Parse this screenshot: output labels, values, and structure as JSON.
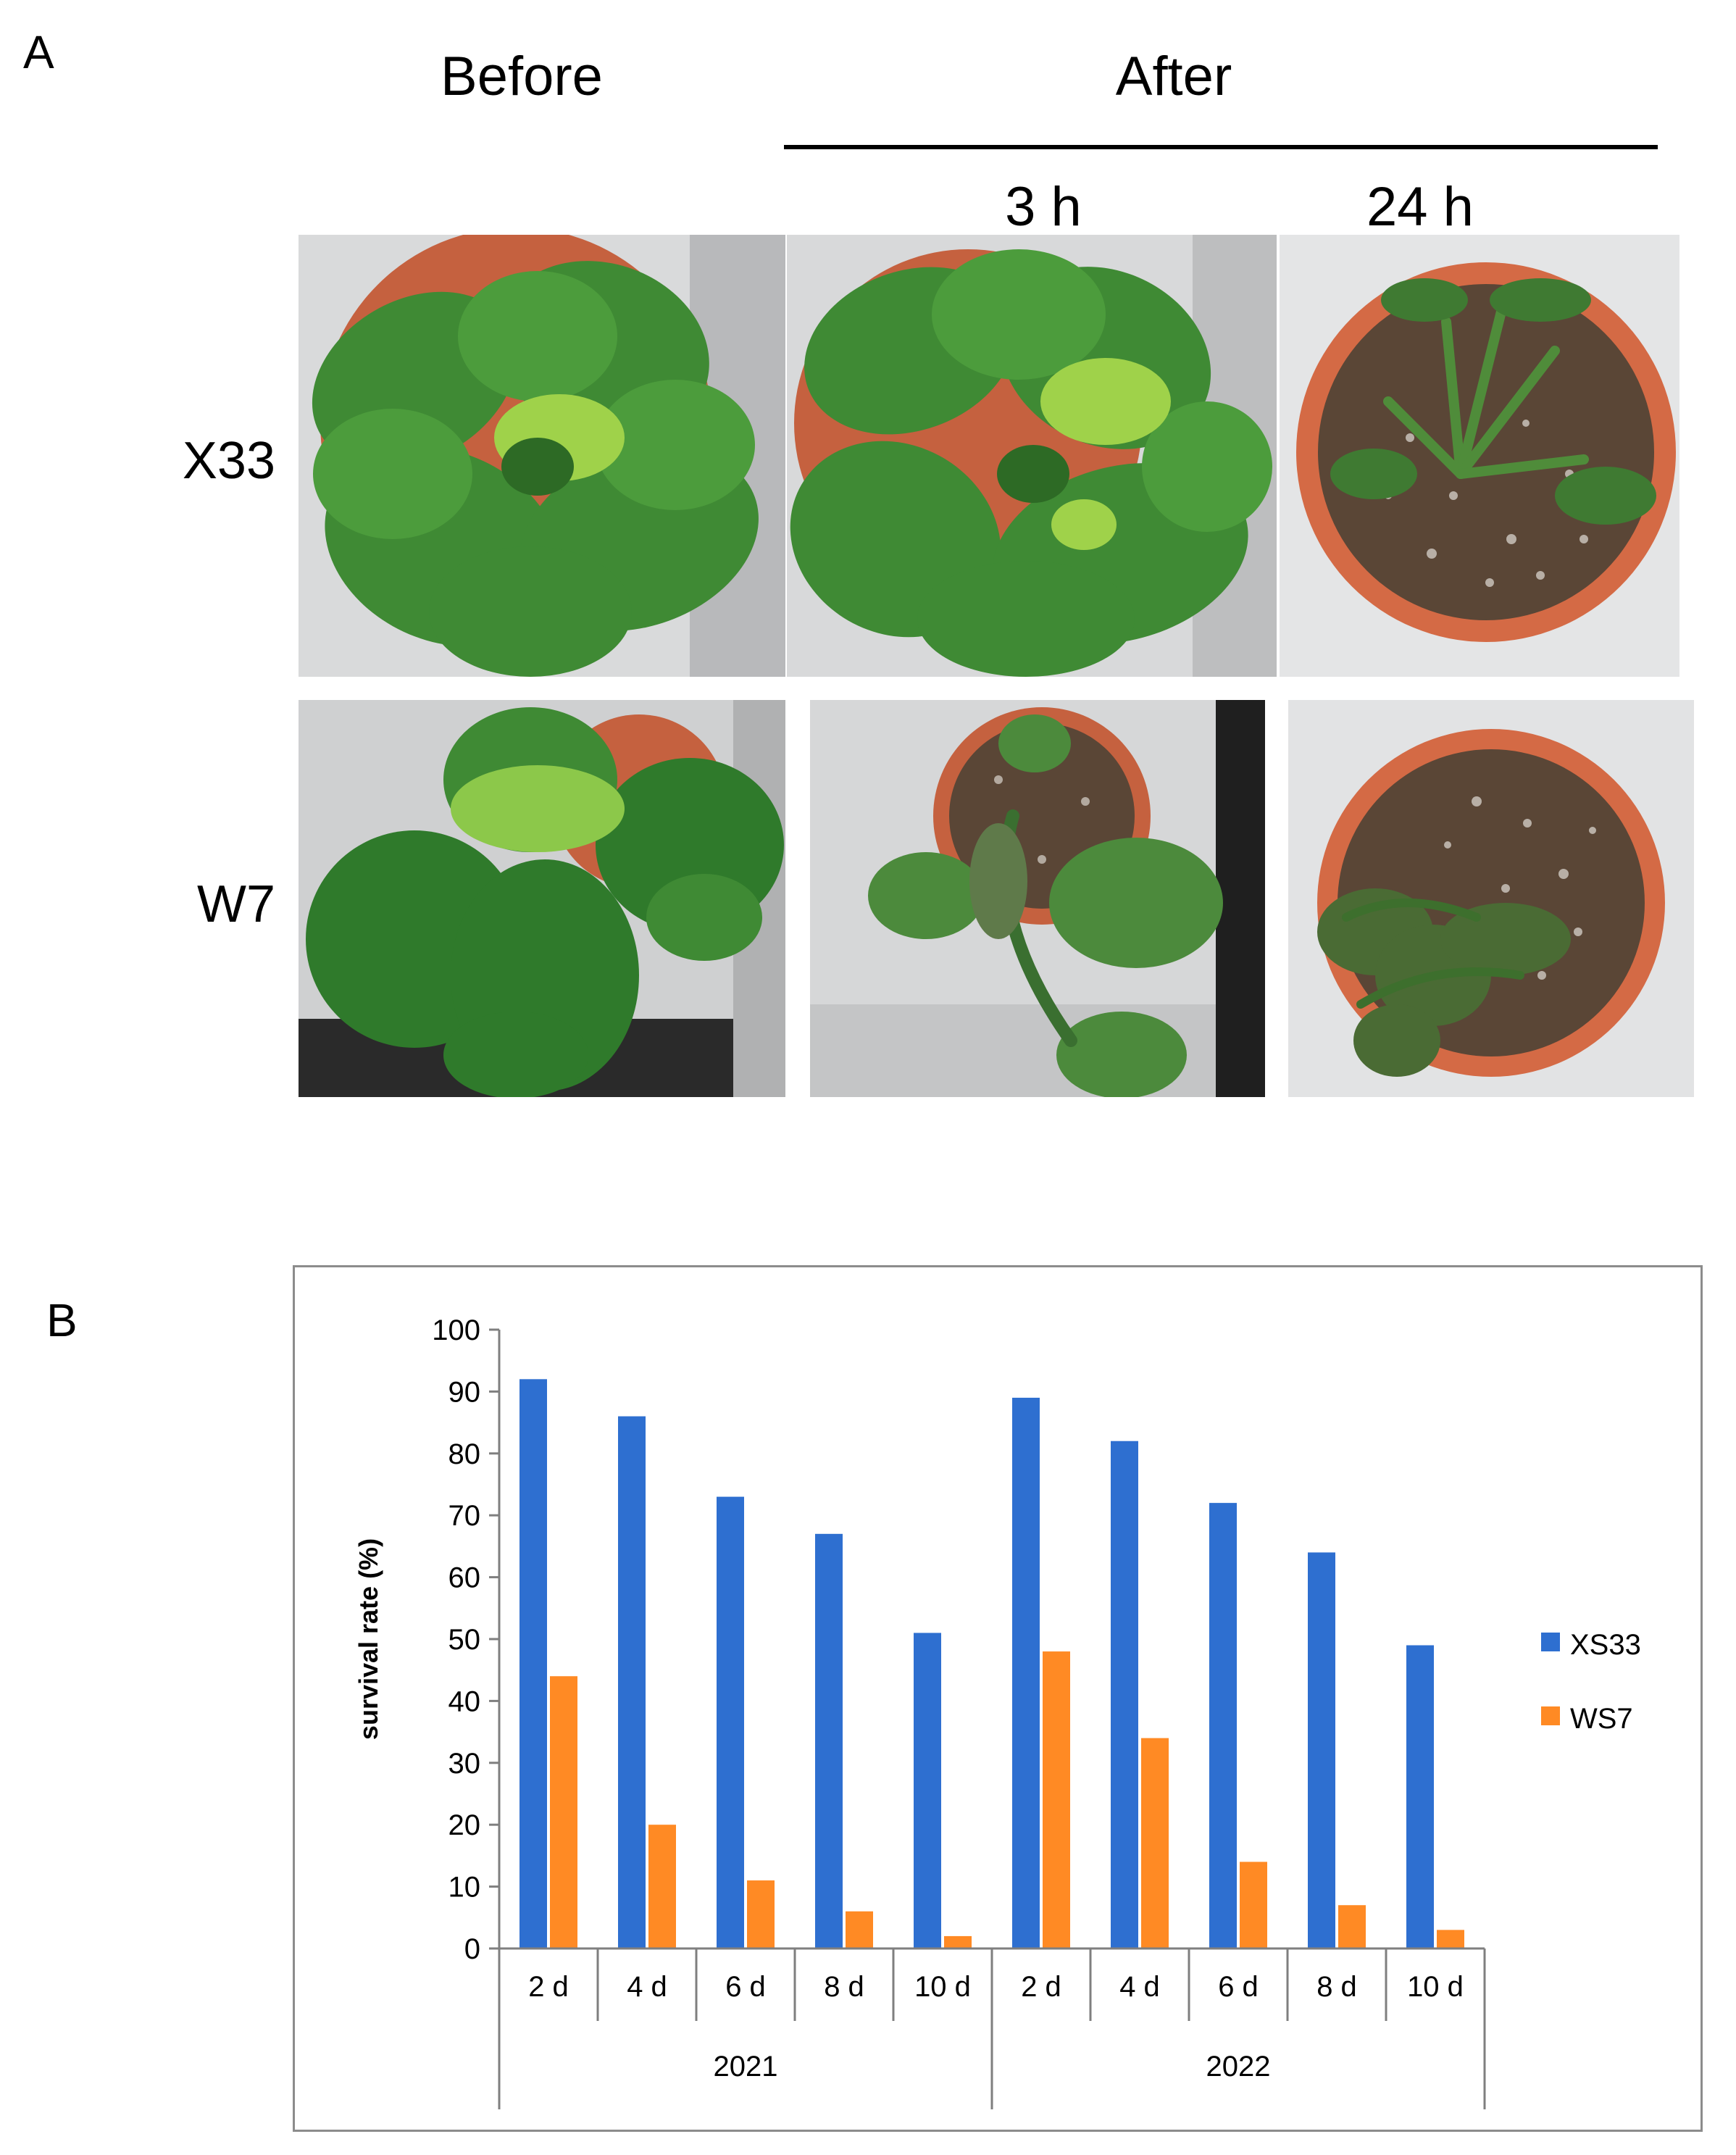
{
  "panel_a": {
    "letter": "A",
    "before_label": "Before",
    "after_label": "After",
    "after_times": [
      "3 h",
      "24 h"
    ],
    "rows": [
      "X33",
      "W7"
    ],
    "photos": [
      {
        "row": "X33",
        "stage": "before",
        "plant_state": "healthy"
      },
      {
        "row": "X33",
        "stage": "3 h",
        "plant_state": "healthy"
      },
      {
        "row": "X33",
        "stage": "24 h",
        "plant_state": "wilted"
      },
      {
        "row": "W7",
        "stage": "before",
        "plant_state": "healthy"
      },
      {
        "row": "W7",
        "stage": "3 h",
        "plant_state": "wilting"
      },
      {
        "row": "W7",
        "stage": "24 h",
        "plant_state": "wilted"
      }
    ]
  },
  "panel_b": {
    "letter": "B"
  },
  "chart_data": {
    "type": "bar",
    "categories": [
      "2 d",
      "4 d",
      "6 d",
      "8 d",
      "10 d",
      "2 d",
      "4 d",
      "6 d",
      "8 d",
      "10 d"
    ],
    "groups": [
      {
        "label": "2021",
        "span": [
          0,
          4
        ]
      },
      {
        "label": "2022",
        "span": [
          5,
          9
        ]
      }
    ],
    "series": [
      {
        "name": "XS33",
        "color": "#2e6fd0",
        "values": [
          92,
          86,
          73,
          67,
          51,
          89,
          82,
          72,
          64,
          49
        ]
      },
      {
        "name": "WS7",
        "color": "#ff8a24",
        "values": [
          44,
          20,
          11,
          6,
          2,
          48,
          34,
          14,
          7,
          3
        ]
      }
    ],
    "title": "",
    "xlabel": "",
    "ylabel": "survival rate (%)",
    "ylim": [
      0,
      100
    ],
    "yticks": [
      0,
      10,
      20,
      30,
      40,
      50,
      60,
      70,
      80,
      90,
      100
    ],
    "grid": false,
    "legend": "right"
  }
}
